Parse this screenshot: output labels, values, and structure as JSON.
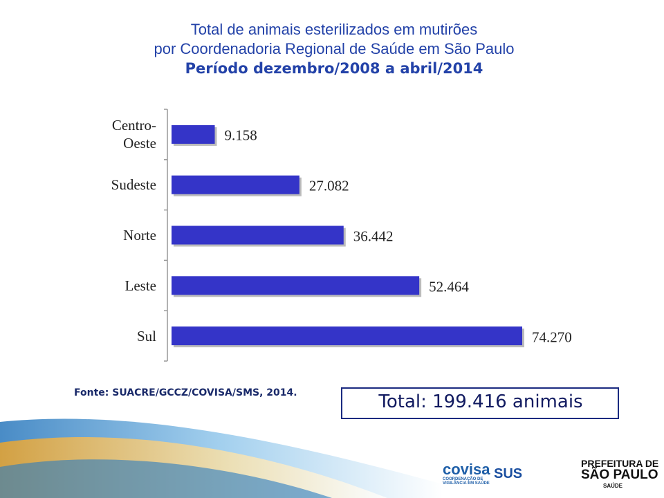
{
  "chart_data": {
    "type": "bar",
    "title": "Total de animais esterilizados em mutirões",
    "subtitle": "por Coordenadoria Regional de Saúde em São Paulo",
    "period": "Período dezembro/2008 a abril/2014",
    "categories": [
      "Centro-Oeste",
      "Sudeste",
      "Norte",
      "Leste",
      "Sul"
    ],
    "values": [
      9158,
      27082,
      36442,
      52464,
      74270
    ],
    "value_labels": [
      "9.158",
      "27.082",
      "36.442",
      "52.464",
      "74.270"
    ],
    "color": "#3434c8"
  },
  "source": "Fonte: SUACRE/GCCZ/COVISA/SMS, 2014.",
  "total": "Total: 199.416 animais",
  "logos": {
    "covisa": "covisa",
    "covisa_sub": "COORDENAÇÃO DE VIGILÂNCIA EM SAÚDE",
    "sus": "SUS",
    "prefeitura": "PREFEITURA DE",
    "city": "SÃO PAULO",
    "dept": "SAÚDE"
  }
}
